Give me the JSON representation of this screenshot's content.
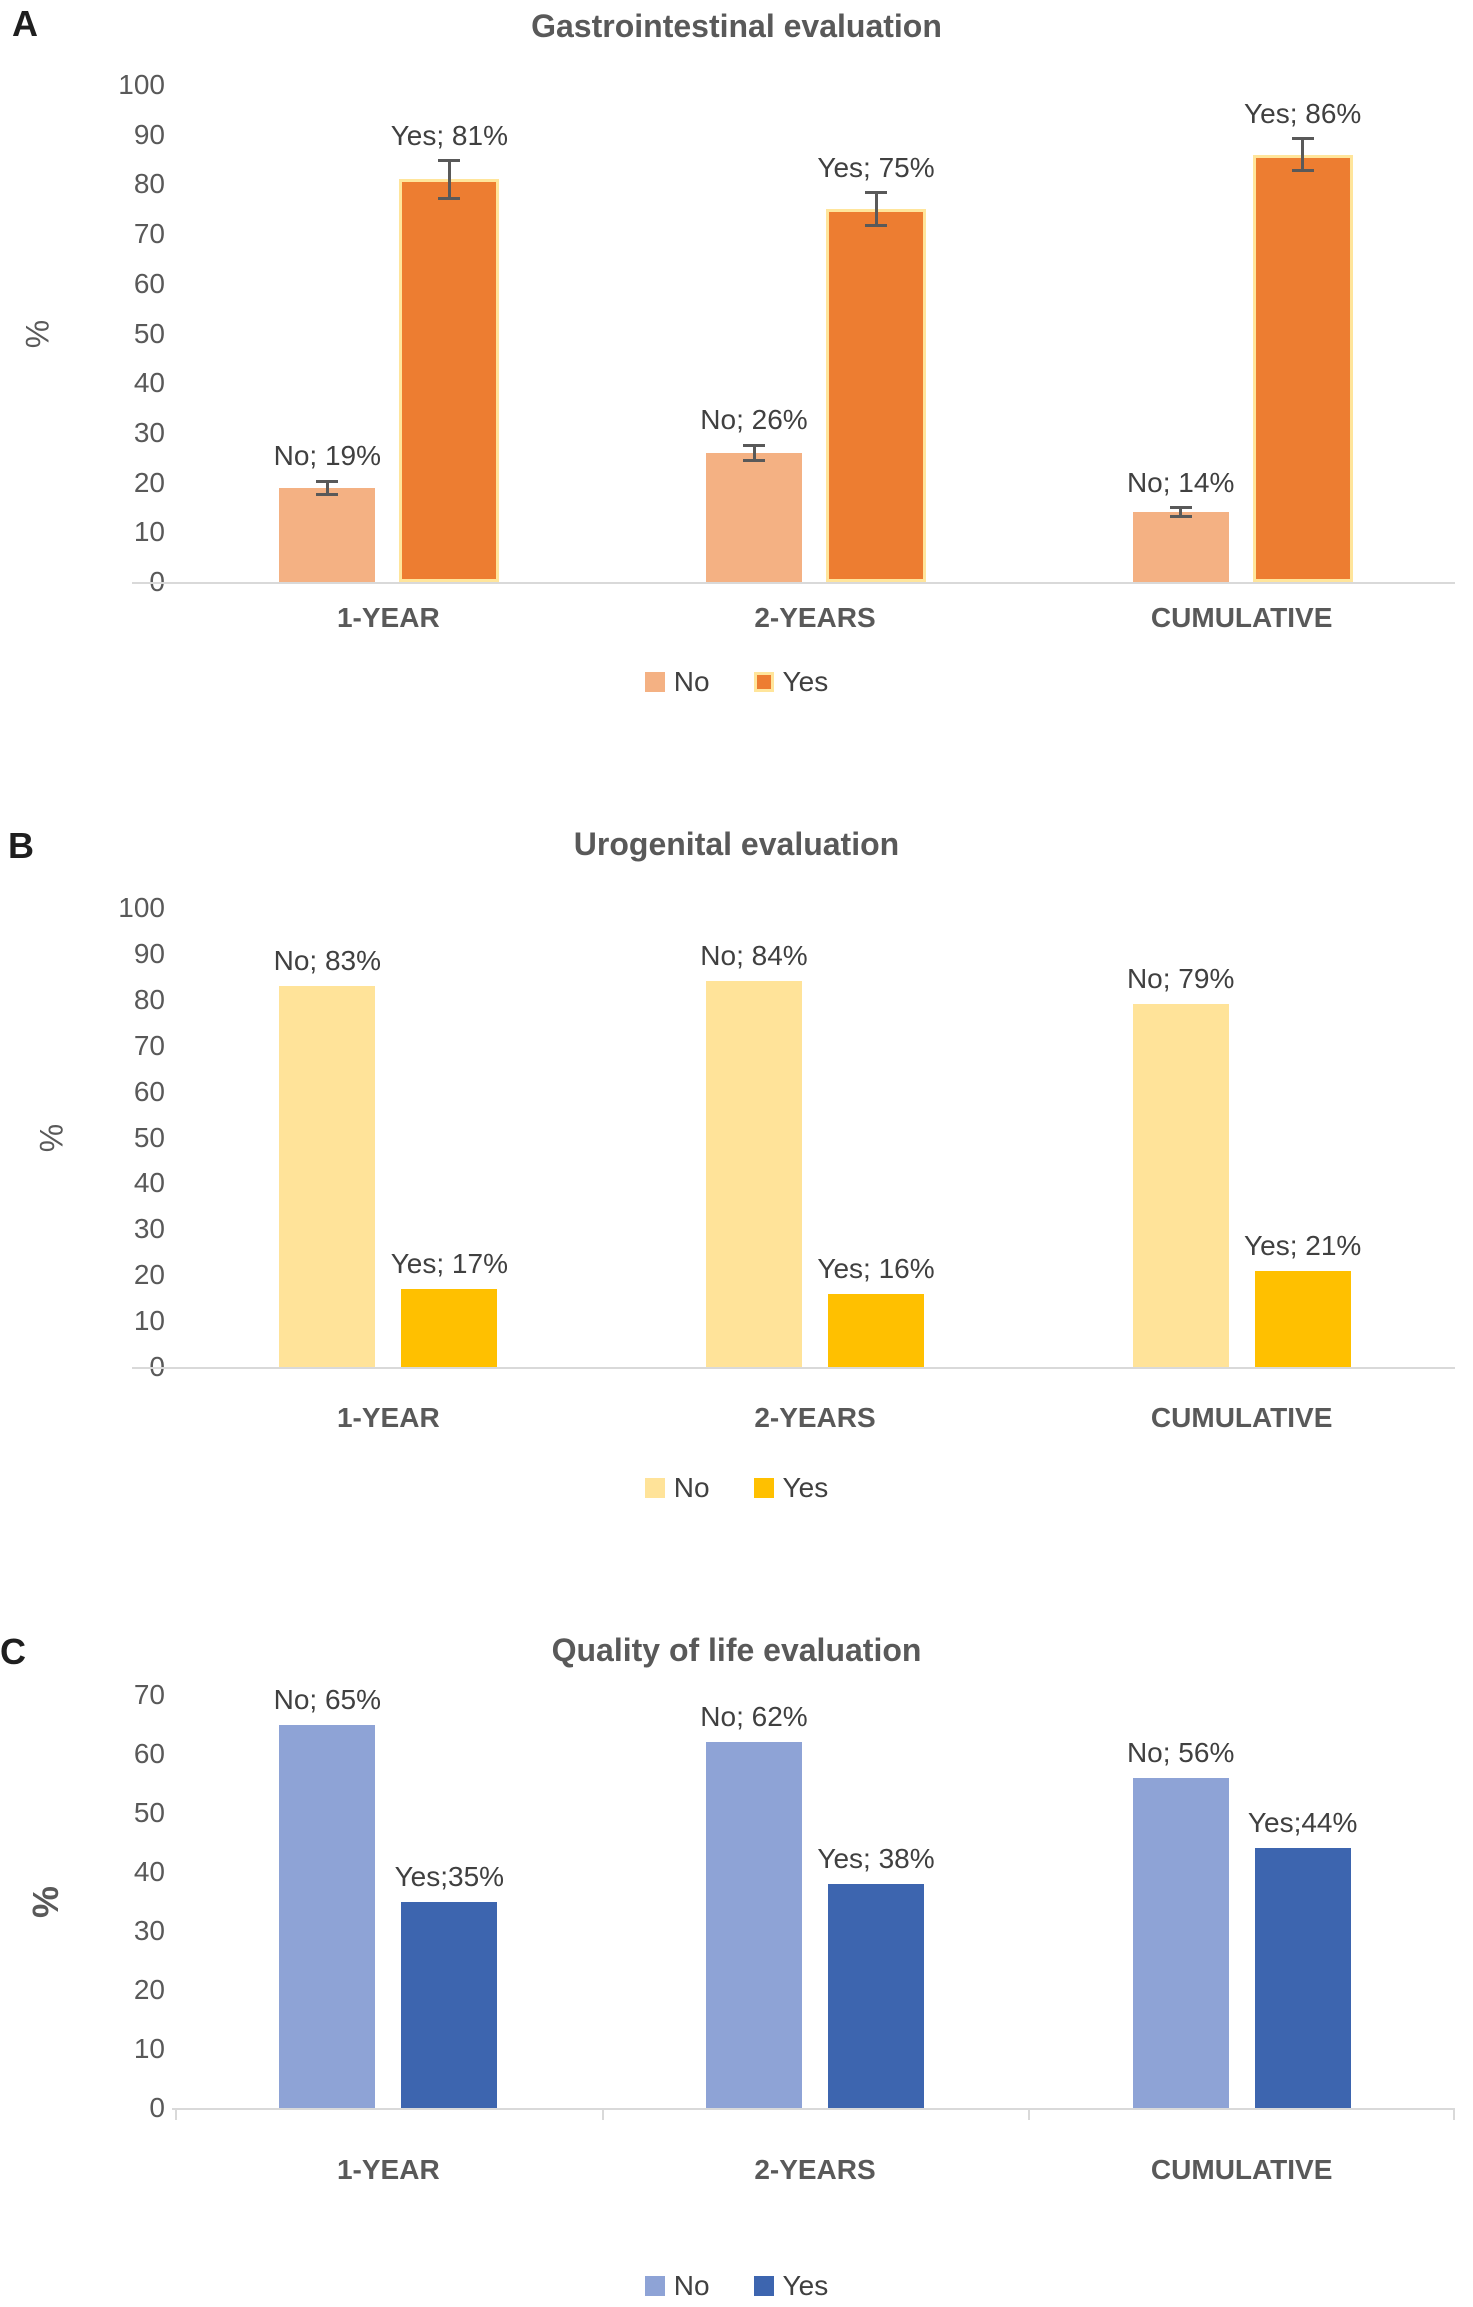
{
  "figure": {
    "background": "#ffffff",
    "text_colors": {
      "title": "#595959",
      "ticks": "#595959",
      "data_labels": "#404040",
      "panel_letter": "#1f1f1f"
    },
    "axis_color": "#d9d9d9",
    "error_bar_color": "#595959"
  },
  "chart_data": [
    {
      "type": "bar",
      "panel": "A",
      "title": "Gastrointestinal evaluation",
      "ylabel": "%",
      "ylim": [
        0,
        100
      ],
      "yticks": [
        "100",
        "90",
        "80",
        "70",
        "60",
        "50",
        "40",
        "30",
        "20",
        "10",
        "0"
      ],
      "categories": [
        "1-YEAR",
        "2-YEARS",
        "CUMULATIVE"
      ],
      "grid": false,
      "legend_position": "bottom",
      "legend": [
        "No",
        "Yes"
      ],
      "series": [
        {
          "name": "No",
          "color": "#F4B183",
          "values": [
            19,
            26,
            14
          ],
          "errors": [
            1.3,
            1.5,
            0.9
          ],
          "data_labels": [
            "No; 19%",
            "No; 26%",
            "No; 14%"
          ]
        },
        {
          "name": "Yes",
          "color": "#ED7D31",
          "border_color": "#FFE59B",
          "values": [
            81,
            75,
            86
          ],
          "errors": [
            3.8,
            3.3,
            3.2
          ],
          "data_labels": [
            "Yes; 81%",
            "Yes; 75%",
            "Yes; 86%"
          ]
        }
      ]
    },
    {
      "type": "bar",
      "panel": "B",
      "title": "Urogenital evaluation",
      "ylabel": "%",
      "ylim": [
        0,
        100
      ],
      "yticks": [
        "100",
        "90",
        "80",
        "70",
        "60",
        "50",
        "40",
        "30",
        "20",
        "10",
        "0"
      ],
      "categories": [
        "1-YEAR",
        "2-YEARS",
        "CUMULATIVE"
      ],
      "grid": false,
      "legend_position": "bottom",
      "legend": [
        "No",
        "Yes"
      ],
      "series": [
        {
          "name": "No",
          "color": "#FFE399",
          "values": [
            83,
            84,
            79
          ],
          "data_labels": [
            "No; 83%",
            "No; 84%",
            "No; 79%"
          ]
        },
        {
          "name": "Yes",
          "color": "#FFC000",
          "values": [
            17,
            16,
            21
          ],
          "data_labels": [
            "Yes; 17%",
            "Yes; 16%",
            "Yes; 21%"
          ]
        }
      ]
    },
    {
      "type": "bar",
      "panel": "C",
      "title": "Quality of life evaluation",
      "ylabel": "%",
      "ylim": [
        0,
        70
      ],
      "yticks": [
        "70",
        "60",
        "50",
        "40",
        "30",
        "20",
        "10",
        "0"
      ],
      "categories": [
        "1-YEAR",
        "2-YEARS",
        "CUMULATIVE"
      ],
      "grid": false,
      "legend_position": "bottom",
      "legend": [
        "No",
        "Yes"
      ],
      "axis_tick_marks": true,
      "series": [
        {
          "name": "No",
          "color": "#8EA3D6",
          "values": [
            65,
            62,
            56
          ],
          "data_labels": [
            "No; 65%",
            "No; 62%",
            "No; 56%"
          ]
        },
        {
          "name": "Yes",
          "color": "#3D65AF",
          "values": [
            35,
            38,
            44
          ],
          "data_labels": [
            "Yes;35%",
            "Yes; 38%",
            "Yes;44%"
          ]
        }
      ]
    }
  ]
}
